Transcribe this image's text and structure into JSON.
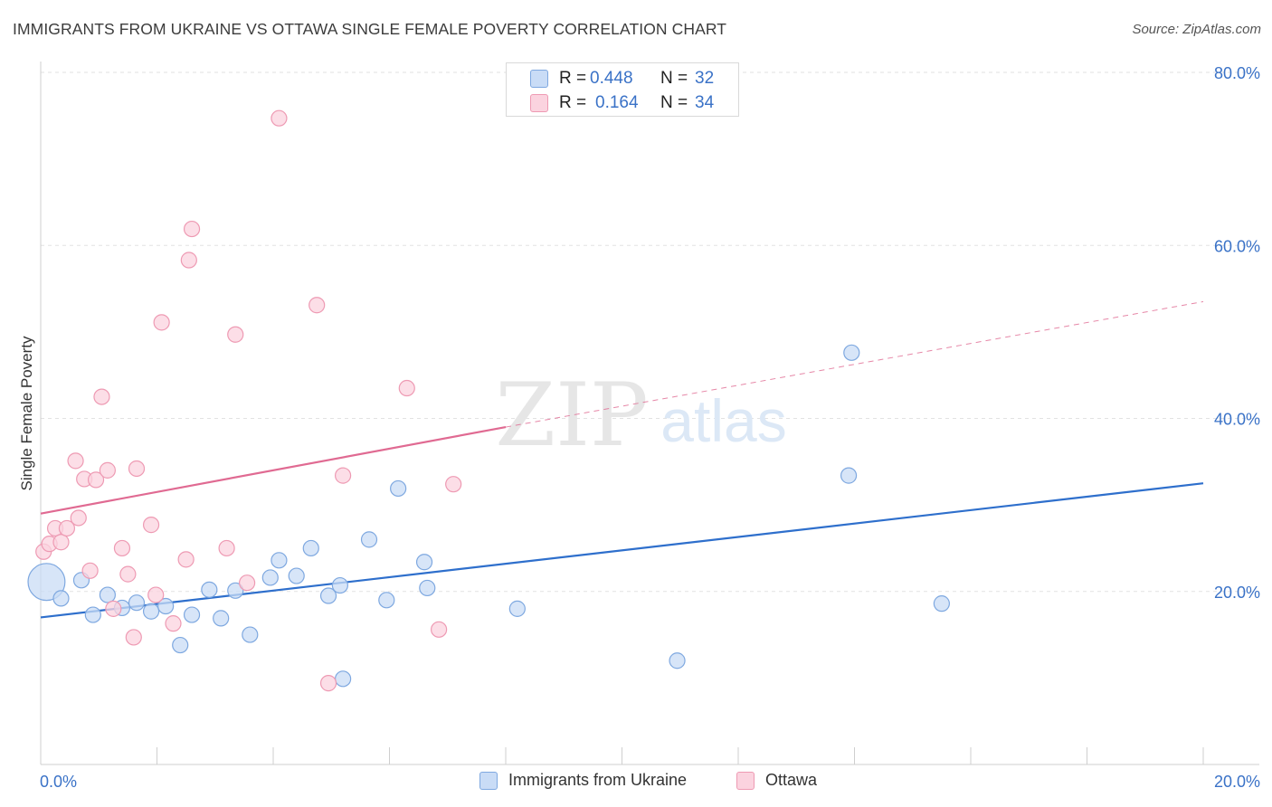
{
  "header": {
    "title": "IMMIGRANTS FROM UKRAINE VS OTTAWA SINGLE FEMALE POVERTY CORRELATION CHART",
    "source": "Source: ZipAtlas.com"
  },
  "watermark": {
    "zip": "ZIP",
    "atlas": "atlas"
  },
  "legend_top": [
    {
      "r_label": "R = ",
      "r_value": "0.448",
      "n_label": "N = ",
      "n_value": "32",
      "color": "#a9c8f0"
    },
    {
      "r_label": "R = ",
      "r_value": "0.164",
      "n_label": "N = ",
      "n_value": "34",
      "color": "#f5b8cb"
    }
  ],
  "colors": {
    "blue_fill": "#c9dcf6",
    "blue_stroke": "#7ea8e0",
    "blue_line": "#2e6fcc",
    "pink_fill": "#fbd3df",
    "pink_stroke": "#ee9ab3",
    "pink_line": "#e06a92",
    "axis_text": "#3a72c7",
    "grid": "#e2e2e2"
  },
  "chart_data": {
    "type": "scatter",
    "title": "IMMIGRANTS FROM UKRAINE VS OTTAWA SINGLE FEMALE POVERTY CORRELATION CHART",
    "xlabel": "",
    "ylabel": "Single Female Poverty",
    "xlim": [
      0,
      20
    ],
    "ylim": [
      0,
      80
    ],
    "x_ticks": [
      "0.0%",
      "20.0%"
    ],
    "y_ticks": [
      {
        "value": 20,
        "label": "20.0%"
      },
      {
        "value": 40,
        "label": "40.0%"
      },
      {
        "value": 60,
        "label": "60.0%"
      },
      {
        "value": 80,
        "label": "80.0%"
      }
    ],
    "grid": true,
    "legend_position": "bottom",
    "series": [
      {
        "name": "Immigrants from Ukraine",
        "color": "blue",
        "points": [
          [
            0.1,
            21.1,
            2.4
          ],
          [
            0.35,
            19.2,
            1
          ],
          [
            0.7,
            21.3,
            1
          ],
          [
            0.9,
            17.3,
            1
          ],
          [
            1.15,
            19.6,
            1
          ],
          [
            1.4,
            18.1,
            1
          ],
          [
            1.65,
            18.7,
            1
          ],
          [
            1.9,
            17.7,
            1
          ],
          [
            2.15,
            18.3,
            1
          ],
          [
            2.4,
            13.8,
            1
          ],
          [
            2.6,
            17.3,
            1
          ],
          [
            2.9,
            20.2,
            1
          ],
          [
            3.1,
            16.9,
            1
          ],
          [
            3.35,
            20.1,
            1
          ],
          [
            3.6,
            15.0,
            1
          ],
          [
            4.1,
            23.6,
            1
          ],
          [
            3.95,
            21.6,
            1
          ],
          [
            4.4,
            21.8,
            1
          ],
          [
            4.65,
            25.0,
            1
          ],
          [
            4.95,
            19.5,
            1
          ],
          [
            5.15,
            20.7,
            1
          ],
          [
            5.2,
            9.9,
            1
          ],
          [
            5.65,
            26.0,
            1
          ],
          [
            5.95,
            19.0,
            1
          ],
          [
            6.15,
            31.9,
            1
          ],
          [
            6.6,
            23.4,
            1
          ],
          [
            6.65,
            20.4,
            1
          ],
          [
            8.2,
            18.0,
            1
          ],
          [
            10.95,
            12.0,
            1
          ],
          [
            13.9,
            33.4,
            1
          ],
          [
            13.95,
            47.6,
            1
          ],
          [
            15.5,
            18.6,
            1
          ]
        ],
        "trend": {
          "x": [
            0,
            20
          ],
          "y": [
            17.0,
            32.5
          ],
          "style": "solid"
        }
      },
      {
        "name": "Ottawa",
        "color": "pink",
        "points": [
          [
            0.05,
            24.6,
            1
          ],
          [
            0.15,
            25.5,
            1
          ],
          [
            0.25,
            27.3,
            1
          ],
          [
            0.35,
            25.7,
            1
          ],
          [
            0.45,
            27.3,
            1
          ],
          [
            0.6,
            35.1,
            1
          ],
          [
            0.65,
            28.5,
            1
          ],
          [
            0.75,
            33.0,
            1
          ],
          [
            0.85,
            22.4,
            1
          ],
          [
            0.95,
            32.9,
            1
          ],
          [
            1.05,
            42.5,
            1
          ],
          [
            1.15,
            34.0,
            1
          ],
          [
            1.25,
            18.0,
            1
          ],
          [
            1.4,
            25.0,
            1
          ],
          [
            1.5,
            22.0,
            1
          ],
          [
            1.6,
            14.7,
            1
          ],
          [
            1.65,
            34.2,
            1
          ],
          [
            1.9,
            27.7,
            1
          ],
          [
            1.98,
            19.6,
            1
          ],
          [
            2.08,
            51.1,
            1
          ],
          [
            2.28,
            16.3,
            1
          ],
          [
            2.5,
            23.7,
            1
          ],
          [
            2.55,
            58.3,
            1
          ],
          [
            2.6,
            61.9,
            1
          ],
          [
            3.2,
            25.0,
            1
          ],
          [
            3.35,
            49.7,
            1
          ],
          [
            3.55,
            21.0,
            1
          ],
          [
            4.1,
            74.7,
            1
          ],
          [
            4.75,
            53.1,
            1
          ],
          [
            4.95,
            9.4,
            1
          ],
          [
            5.2,
            33.4,
            1
          ],
          [
            6.3,
            43.5,
            1
          ],
          [
            6.85,
            15.6,
            1
          ],
          [
            7.1,
            32.4,
            1
          ]
        ],
        "trend": {
          "x": [
            0,
            8.0,
            20
          ],
          "y": [
            29.0,
            39.0,
            53.5
          ],
          "style": "solid-then-dashed"
        }
      }
    ]
  }
}
